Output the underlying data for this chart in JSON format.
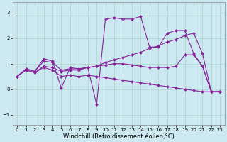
{
  "background_color": "#cce8f0",
  "grid_color": "#aad4cc",
  "line_color": "#882299",
  "marker": "D",
  "markersize": 2.0,
  "linewidth": 0.8,
  "xlabel": "Windchill (Refroidissement éolien,°C)",
  "xlabel_fontsize": 6.0,
  "tick_fontsize": 5.0,
  "xlim": [
    -0.5,
    23.5
  ],
  "ylim": [
    -1.4,
    3.4
  ],
  "yticks": [
    -1,
    0,
    1,
    2,
    3
  ],
  "xticks": [
    0,
    1,
    2,
    3,
    4,
    5,
    6,
    7,
    8,
    9,
    10,
    11,
    12,
    13,
    14,
    15,
    16,
    17,
    18,
    19,
    20,
    21,
    22,
    23
  ],
  "series": [
    {
      "x": [
        0,
        1,
        2,
        3,
        4,
        5,
        6,
        7,
        8,
        9,
        10,
        11,
        12,
        13,
        14,
        15,
        16,
        17,
        18,
        19,
        20,
        21,
        22,
        23
      ],
      "y": [
        0.5,
        0.8,
        0.7,
        1.2,
        1.1,
        0.05,
        0.85,
        0.8,
        0.85,
        -0.6,
        2.75,
        2.8,
        2.75,
        2.75,
        2.85,
        1.65,
        1.65,
        2.2,
        2.3,
        2.3,
        1.4,
        0.9,
        -0.1,
        -0.1
      ]
    },
    {
      "x": [
        0,
        1,
        2,
        3,
        4,
        5,
        6,
        7,
        8,
        9,
        10,
        11,
        12,
        13,
        14,
        15,
        16,
        17,
        18,
        19,
        20,
        21,
        22,
        23
      ],
      "y": [
        0.5,
        0.75,
        0.65,
        0.9,
        0.85,
        0.7,
        0.75,
        0.75,
        0.85,
        0.9,
        1.05,
        1.15,
        1.25,
        1.35,
        1.45,
        1.6,
        1.7,
        1.85,
        1.95,
        2.1,
        2.2,
        1.4,
        -0.1,
        -0.1
      ]
    },
    {
      "x": [
        0,
        1,
        2,
        3,
        4,
        5,
        6,
        7,
        8,
        9,
        10,
        11,
        12,
        13,
        14,
        15,
        16,
        17,
        18,
        19,
        20,
        21,
        22,
        23
      ],
      "y": [
        0.5,
        0.8,
        0.7,
        1.1,
        1.05,
        0.75,
        0.8,
        0.8,
        0.85,
        0.9,
        0.95,
        1.0,
        1.0,
        0.95,
        0.9,
        0.85,
        0.85,
        0.85,
        0.9,
        1.35,
        1.35,
        0.9,
        -0.1,
        -0.1
      ]
    },
    {
      "x": [
        0,
        1,
        2,
        3,
        4,
        5,
        6,
        7,
        8,
        9,
        10,
        11,
        12,
        13,
        14,
        15,
        16,
        17,
        18,
        19,
        20,
        21,
        22,
        23
      ],
      "y": [
        0.5,
        0.75,
        0.65,
        0.85,
        0.75,
        0.5,
        0.55,
        0.5,
        0.55,
        0.5,
        0.45,
        0.4,
        0.35,
        0.3,
        0.25,
        0.2,
        0.15,
        0.1,
        0.05,
        0.0,
        -0.05,
        -0.1,
        -0.1,
        -0.1
      ]
    }
  ]
}
